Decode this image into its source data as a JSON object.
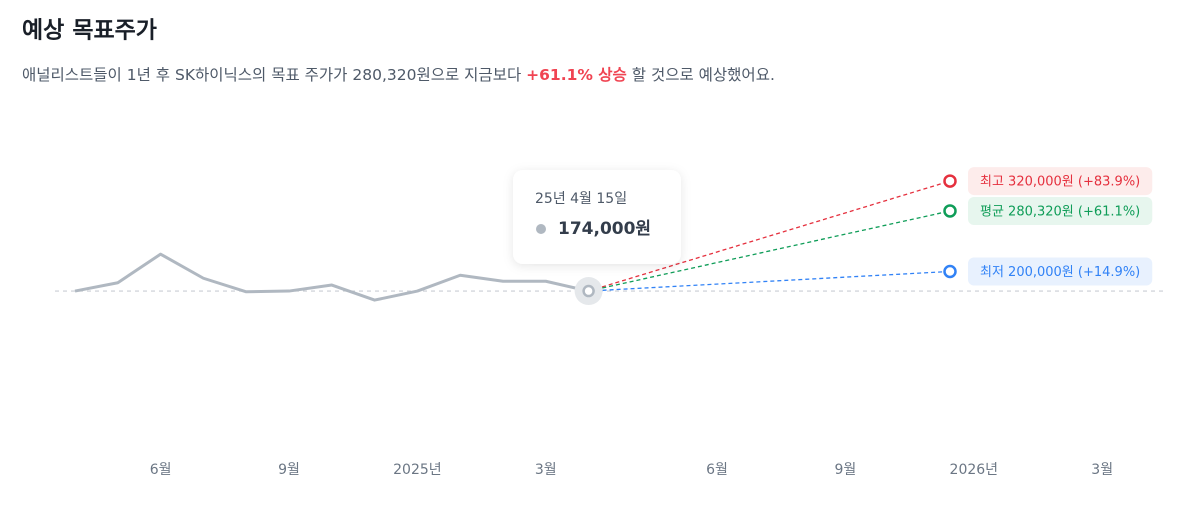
{
  "chart_data": {
    "type": "line",
    "title": "예상 목표주가",
    "subtitle_parts": [
      "애널리스트들이 1년 후 SK하이닉스의 목표 주가가 280,320원으로 지금보다 ",
      "+61.1% 상승",
      " 할 것으로 예상했어요."
    ],
    "highlight_color": "#f04452",
    "categories": [
      null,
      null,
      "6월",
      null,
      null,
      "9월",
      null,
      null,
      "2025년",
      null,
      null,
      "3월",
      null,
      null,
      null,
      "6월",
      null,
      null,
      "9월",
      null,
      null,
      "2026년",
      null,
      null,
      "3월"
    ],
    "values": [
      174000,
      185000,
      223000,
      191000,
      173000,
      174000,
      182000,
      162000,
      174000,
      195000,
      187000,
      187000,
      174000,
      null,
      null,
      null,
      null,
      null,
      null,
      null,
      null,
      null,
      null,
      null,
      null
    ],
    "color": "#b0b8c1",
    "ylim": [
      100000,
      340000
    ],
    "current": {
      "date": "25년 4월 15일",
      "value": 174000,
      "value_label": "174,000원"
    },
    "targets": [
      {
        "value": 320000,
        "label": "최고 320,000원 (+83.9%)",
        "color": "#e5303e",
        "background": "#fdeceb"
      },
      {
        "value": 280320,
        "label": "평균 280,320원 (+61.1%)",
        "color": "#0f9d58",
        "background": "#e7f6ee"
      },
      {
        "value": 200000,
        "label": "최저 200,000원 (+14.9%)",
        "color": "#3182f6",
        "background": "#e8f1fe"
      }
    ]
  }
}
